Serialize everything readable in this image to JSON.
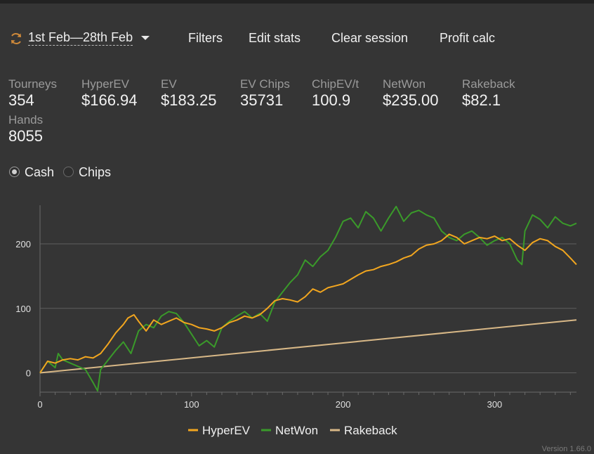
{
  "toolbar": {
    "refresh_icon": "refresh-icon",
    "date_range": "1st Feb—28th Feb",
    "filters_label": "Filters",
    "edit_stats_label": "Edit stats",
    "clear_session_label": "Clear session",
    "profit_calc_label": "Profit calc"
  },
  "stats": [
    {
      "label": "Tourneys",
      "value": "354"
    },
    {
      "label": "HyperEV",
      "value": "$166.94"
    },
    {
      "label": "EV",
      "value": "$183.25"
    },
    {
      "label": "EV Chips",
      "value": "35731"
    },
    {
      "label": "ChipEV/t",
      "value": "100.9"
    },
    {
      "label": "NetWon",
      "value": "$235.00"
    },
    {
      "label": "Rakeback",
      "value": "$82.1"
    },
    {
      "label": "Hands",
      "value": "8055"
    }
  ],
  "mode": {
    "options": [
      "Cash",
      "Chips"
    ],
    "selected": "Cash"
  },
  "version": "Version 1.66.0",
  "chart_data": {
    "type": "line",
    "title": "",
    "xlabel": "",
    "ylabel": "",
    "xlim": [
      0,
      354
    ],
    "ylim": [
      -30,
      260
    ],
    "x_ticks": [
      0,
      100,
      200,
      300
    ],
    "y_ticks": [
      0,
      100,
      200
    ],
    "grid": "horizontal",
    "legend_position": "bottom",
    "series": [
      {
        "name": "HyperEV",
        "color": "#f2a61f",
        "x": [
          0,
          5,
          10,
          15,
          20,
          25,
          30,
          35,
          40,
          45,
          50,
          55,
          58,
          62,
          65,
          70,
          75,
          80,
          85,
          90,
          95,
          100,
          105,
          110,
          115,
          120,
          125,
          130,
          135,
          140,
          145,
          150,
          155,
          160,
          165,
          170,
          175,
          180,
          185,
          190,
          195,
          200,
          205,
          210,
          215,
          220,
          225,
          230,
          235,
          240,
          245,
          250,
          255,
          260,
          265,
          270,
          275,
          280,
          285,
          290,
          295,
          300,
          305,
          310,
          315,
          320,
          325,
          330,
          335,
          340,
          345,
          350,
          354
        ],
        "y": [
          0,
          18,
          15,
          20,
          22,
          20,
          25,
          23,
          30,
          45,
          62,
          75,
          85,
          90,
          80,
          65,
          82,
          75,
          80,
          85,
          78,
          75,
          70,
          68,
          65,
          70,
          78,
          82,
          88,
          85,
          90,
          100,
          112,
          115,
          113,
          110,
          118,
          130,
          125,
          132,
          135,
          138,
          145,
          152,
          158,
          160,
          165,
          168,
          172,
          178,
          182,
          192,
          198,
          200,
          205,
          215,
          210,
          200,
          205,
          210,
          208,
          212,
          205,
          208,
          198,
          190,
          202,
          208,
          205,
          196,
          190,
          178,
          168
        ]
      },
      {
        "name": "NetWon",
        "color": "#3a9a2a",
        "x": [
          0,
          5,
          10,
          12,
          15,
          20,
          25,
          30,
          35,
          38,
          40,
          45,
          50,
          55,
          60,
          65,
          70,
          75,
          80,
          85,
          90,
          95,
          100,
          105,
          110,
          115,
          120,
          125,
          130,
          135,
          140,
          145,
          150,
          155,
          160,
          165,
          170,
          175,
          180,
          185,
          190,
          195,
          200,
          205,
          210,
          215,
          220,
          225,
          230,
          235,
          240,
          245,
          250,
          255,
          260,
          265,
          270,
          275,
          280,
          285,
          290,
          295,
          300,
          305,
          310,
          315,
          318,
          320,
          325,
          330,
          335,
          340,
          345,
          350,
          354
        ],
        "y": [
          0,
          18,
          8,
          30,
          20,
          15,
          10,
          5,
          -15,
          -28,
          5,
          20,
          35,
          48,
          30,
          65,
          75,
          70,
          88,
          95,
          92,
          78,
          60,
          42,
          50,
          40,
          70,
          80,
          88,
          95,
          85,
          92,
          80,
          110,
          125,
          140,
          152,
          175,
          165,
          180,
          190,
          210,
          235,
          240,
          225,
          250,
          240,
          220,
          240,
          258,
          235,
          248,
          252,
          245,
          240,
          220,
          210,
          205,
          215,
          220,
          210,
          198,
          205,
          210,
          200,
          175,
          168,
          220,
          245,
          238,
          225,
          242,
          232,
          228,
          232
        ]
      },
      {
        "name": "Rakeback",
        "color": "#d8b887",
        "x": [
          0,
          354
        ],
        "y": [
          0,
          82.1
        ]
      }
    ]
  }
}
